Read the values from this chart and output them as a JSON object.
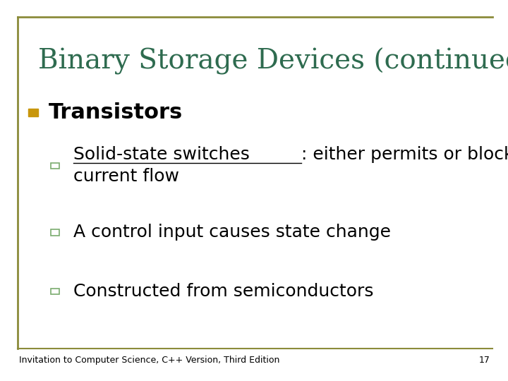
{
  "title": "Binary Storage Devices (continued)",
  "title_color": "#2E6B4F",
  "title_fontsize": 28,
  "background_color": "#FFFFFF",
  "border_color": "#8B8B3A",
  "bullet1_text": "Transistors",
  "bullet1_color": "#000000",
  "bullet1_marker_color": "#C8960C",
  "bullet1_fontsize": 22,
  "sub_bullet_fontsize": 18,
  "sub_bullet_color": "#000000",
  "sub_bullet_marker_color": "#7AAB6E",
  "footer_text": "Invitation to Computer Science, C++ Version, Third Edition",
  "footer_page": "17",
  "footer_fontsize": 9,
  "footer_color": "#000000"
}
